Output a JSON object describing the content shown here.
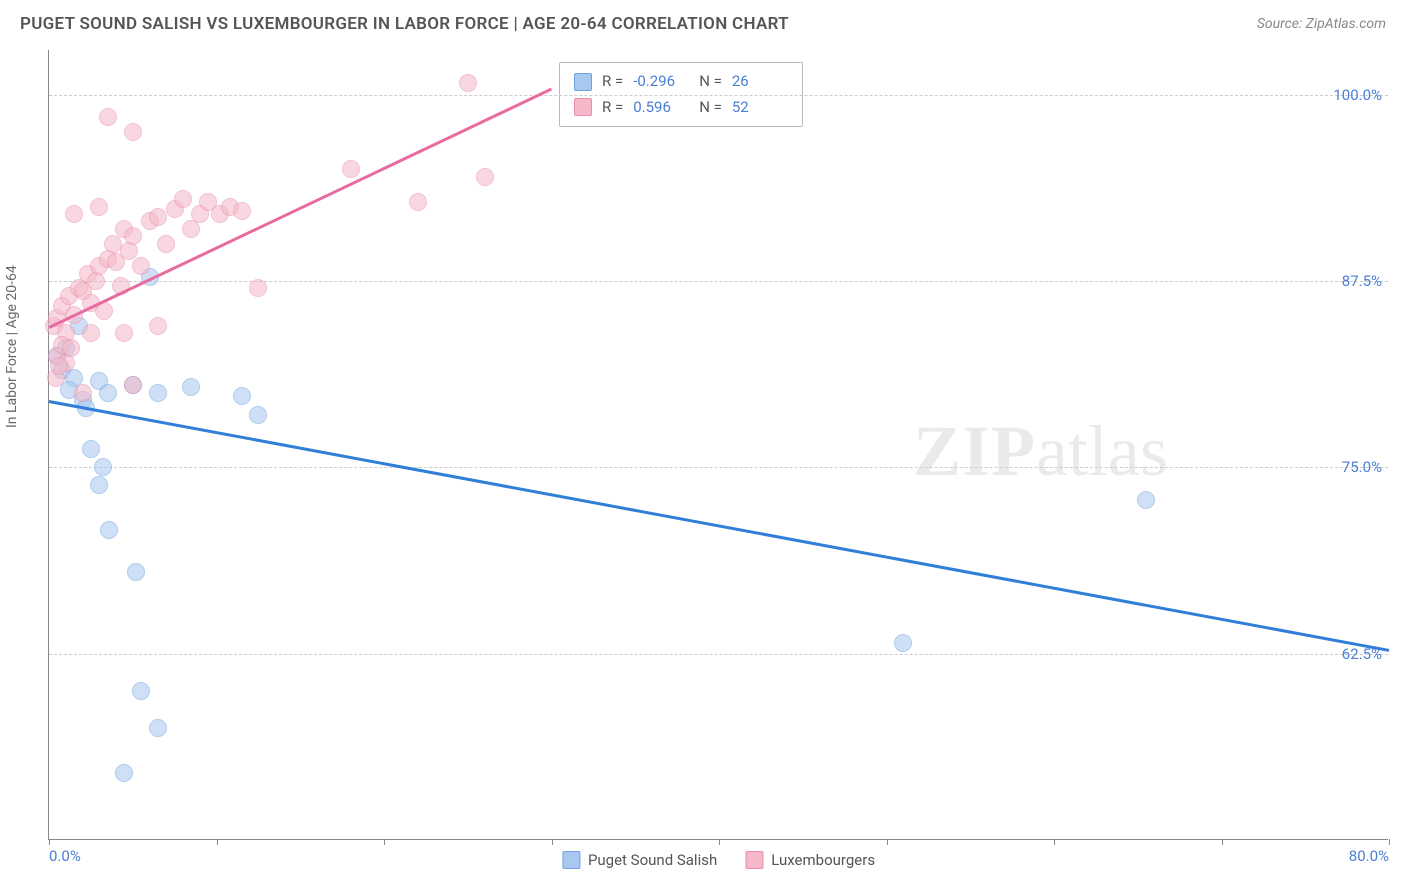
{
  "title": "PUGET SOUND SALISH VS LUXEMBOURGER IN LABOR FORCE | AGE 20-64 CORRELATION CHART",
  "source": "Source: ZipAtlas.com",
  "y_axis_label": "In Labor Force | Age 20-64",
  "watermark_a": "ZIP",
  "watermark_b": "atlas",
  "chart": {
    "type": "scatter_with_trend",
    "xlim": [
      0,
      80
    ],
    "ylim": [
      50,
      103
    ],
    "y_ticks": [
      62.5,
      75.0,
      87.5,
      100.0
    ],
    "y_tick_labels": [
      "62.5%",
      "75.0%",
      "87.5%",
      "100.0%"
    ],
    "x_ticks": [
      0,
      10,
      20,
      30,
      40,
      50,
      60,
      70,
      80
    ],
    "x_tick_labels_shown": {
      "0": "0.0%",
      "80": "80.0%"
    },
    "background_color": "#ffffff",
    "grid_color": "#cccccc",
    "axis_color": "#888888",
    "series": [
      {
        "name": "Puget Sound Salish",
        "color_fill": "#a8c8f0",
        "color_border": "#6fa3e0",
        "trend_color": "#2f7ed8",
        "point_radius": 9,
        "R": "-0.296",
        "N": "26",
        "trend": {
          "x1": 0,
          "y1": 79.5,
          "x2": 80,
          "y2": 62.8
        },
        "points": [
          [
            0.5,
            82.5
          ],
          [
            0.8,
            81.5
          ],
          [
            1.5,
            81.0
          ],
          [
            1.2,
            80.2
          ],
          [
            2.0,
            79.5
          ],
          [
            3.0,
            80.8
          ],
          [
            3.5,
            80.0
          ],
          [
            5.0,
            80.5
          ],
          [
            6.5,
            80.0
          ],
          [
            8.5,
            80.4
          ],
          [
            6.0,
            87.8
          ],
          [
            11.5,
            79.8
          ],
          [
            12.5,
            78.5
          ],
          [
            2.5,
            76.2
          ],
          [
            3.2,
            75.0
          ],
          [
            3.0,
            73.8
          ],
          [
            3.6,
            70.8
          ],
          [
            5.2,
            68.0
          ],
          [
            5.5,
            60.0
          ],
          [
            6.5,
            57.5
          ],
          [
            4.5,
            54.5
          ],
          [
            51.0,
            63.2
          ],
          [
            65.5,
            72.8
          ],
          [
            1.0,
            83.0
          ],
          [
            1.8,
            84.5
          ],
          [
            2.2,
            79.0
          ]
        ]
      },
      {
        "name": "Luxembourgers",
        "color_fill": "#f5b8c8",
        "color_border": "#ea8fad",
        "trend_color": "#e86aa0",
        "point_radius": 9,
        "R": "0.596",
        "N": "52",
        "trend": {
          "x1": 0,
          "y1": 84.5,
          "x2": 30,
          "y2": 100.5
        },
        "points": [
          [
            0.3,
            84.5
          ],
          [
            0.5,
            85.0
          ],
          [
            0.8,
            85.8
          ],
          [
            1.0,
            84.0
          ],
          [
            1.2,
            86.5
          ],
          [
            1.5,
            85.2
          ],
          [
            1.8,
            87.0
          ],
          [
            2.0,
            86.8
          ],
          [
            2.3,
            88.0
          ],
          [
            2.5,
            86.0
          ],
          [
            2.8,
            87.5
          ],
          [
            3.0,
            88.5
          ],
          [
            3.3,
            85.5
          ],
          [
            3.5,
            89.0
          ],
          [
            3.8,
            90.0
          ],
          [
            4.0,
            88.8
          ],
          [
            4.3,
            87.2
          ],
          [
            4.5,
            91.0
          ],
          [
            4.8,
            89.5
          ],
          [
            5.0,
            90.5
          ],
          [
            5.5,
            88.5
          ],
          [
            6.0,
            91.5
          ],
          [
            6.5,
            91.8
          ],
          [
            7.0,
            90.0
          ],
          [
            7.5,
            92.3
          ],
          [
            8.0,
            93.0
          ],
          [
            8.5,
            91.0
          ],
          [
            9.0,
            92.0
          ],
          [
            9.5,
            92.8
          ],
          [
            10.2,
            92.0
          ],
          [
            10.8,
            92.5
          ],
          [
            11.5,
            92.2
          ],
          [
            12.5,
            87.0
          ],
          [
            3.5,
            98.5
          ],
          [
            5.0,
            97.5
          ],
          [
            25.0,
            100.8
          ],
          [
            18.0,
            95.0
          ],
          [
            22.0,
            92.8
          ],
          [
            26.0,
            94.5
          ],
          [
            0.5,
            82.5
          ],
          [
            0.8,
            83.2
          ],
          [
            1.0,
            82.0
          ],
          [
            1.3,
            83.0
          ],
          [
            2.5,
            84.0
          ],
          [
            4.5,
            84.0
          ],
          [
            6.5,
            84.5
          ],
          [
            2.0,
            80.0
          ],
          [
            5.0,
            80.5
          ],
          [
            0.4,
            81.0
          ],
          [
            0.6,
            81.8
          ],
          [
            1.5,
            92.0
          ],
          [
            3.0,
            92.5
          ]
        ]
      }
    ]
  },
  "stats_legend": {
    "rows": [
      {
        "swatch": "#a8c8f0",
        "border": "#6fa3e0",
        "r_label": "R =",
        "r_val": "-0.296",
        "n_label": "N =",
        "n_val": "26"
      },
      {
        "swatch": "#f5b8c8",
        "border": "#ea8fad",
        "r_label": "R =",
        "r_val": "0.596",
        "n_label": "N =",
        "n_val": "52"
      }
    ]
  },
  "bottom_legend": [
    {
      "swatch": "#a8c8f0",
      "border": "#6fa3e0",
      "label": "Puget Sound Salish"
    },
    {
      "swatch": "#f5b8c8",
      "border": "#ea8fad",
      "label": "Luxembourgers"
    }
  ]
}
